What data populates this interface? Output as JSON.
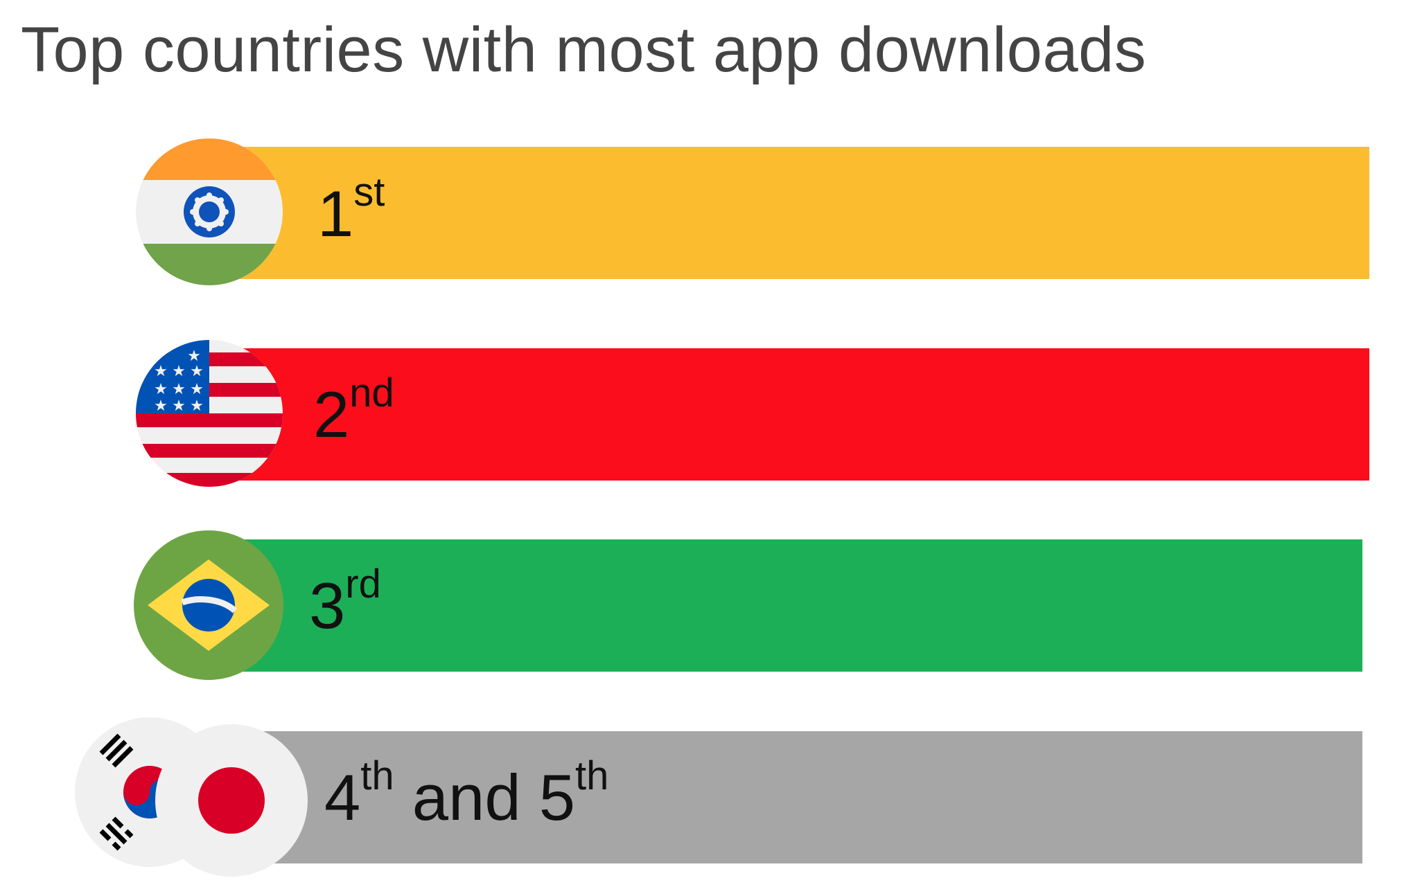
{
  "title": "Top countries with most app downloads",
  "chart_data": {
    "type": "bar",
    "title": "Top countries with most app downloads",
    "categories": [
      "1st",
      "2nd",
      "3rd",
      "4th and 5th"
    ],
    "rows": [
      {
        "rank": "1",
        "suffix": "st",
        "flags": [
          "india-flag-icon"
        ],
        "color": "#FBBD2F"
      },
      {
        "rank": "2",
        "suffix": "nd",
        "flags": [
          "usa-flag-icon"
        ],
        "color": "#FB0D1B"
      },
      {
        "rank": "3",
        "suffix": "rd",
        "flags": [
          "brazil-flag-icon"
        ],
        "color": "#1CAF58"
      },
      {
        "rank": "4",
        "suffix": "th",
        "joiner": " and 5",
        "suffix2": "th",
        "flags": [
          "south-korea-flag-icon",
          "japan-flag-icon"
        ],
        "color": "#A6A6A6"
      }
    ]
  }
}
